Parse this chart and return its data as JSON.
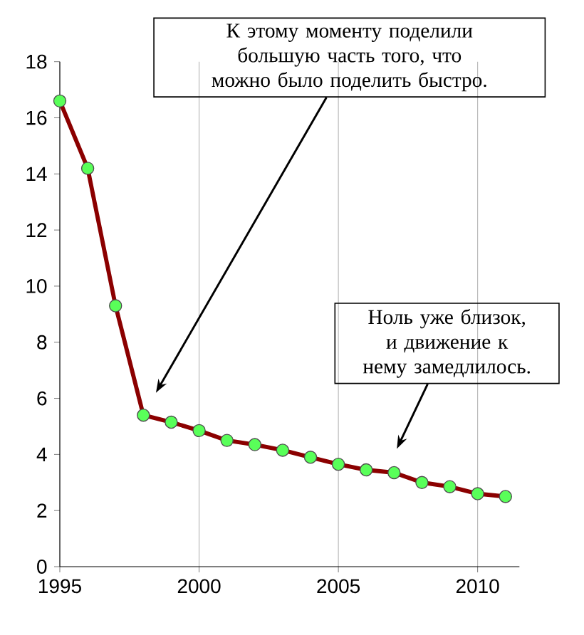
{
  "chart_data": {
    "type": "line",
    "x": [
      1995,
      1996,
      1997,
      1998,
      1999,
      2000,
      2001,
      2002,
      2003,
      2004,
      2005,
      2006,
      2007,
      2008,
      2009,
      2010,
      2011
    ],
    "series": [
      {
        "color": "#8b0000",
        "values": [
          16.6,
          14.2,
          9.3,
          5.4,
          5.15,
          4.85,
          4.5,
          4.35,
          4.15,
          3.9,
          3.65,
          3.45,
          3.35,
          3.0,
          2.85,
          2.6,
          2.5
        ]
      }
    ],
    "xlim": [
      1995,
      2011.5
    ],
    "ylim": [
      0,
      18
    ],
    "xticks": [
      1995,
      2000,
      2005,
      2010
    ],
    "yticks": [
      0,
      2,
      4,
      6,
      8,
      10,
      12,
      14,
      16,
      18
    ],
    "grid": "x",
    "marker": "circle",
    "line_style": "solid",
    "annotations": [
      "К этому моменту  поделили большую часть того, что можно было поделить быстро.",
      "Ноль уже близок, и движение к нему замедлилось."
    ]
  }
}
